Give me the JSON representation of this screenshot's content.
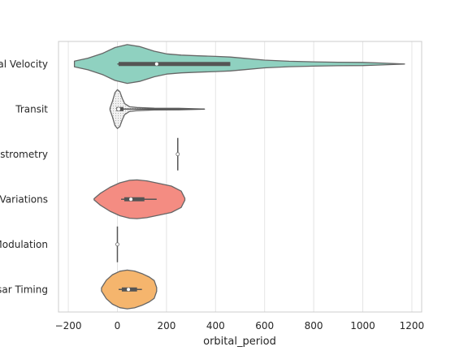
{
  "chart_data": {
    "type": "violin",
    "orientation": "horizontal",
    "xlabel": "orbital_period",
    "ylabel": "",
    "xlim": [
      -240,
      1240
    ],
    "xticks": [
      -200,
      0,
      200,
      400,
      600,
      800,
      1000,
      1200
    ],
    "xtick_labels": [
      "−200",
      "0",
      "200",
      "400",
      "600",
      "800",
      "1000",
      "1200"
    ],
    "grid": true,
    "categories": [
      "al Velocity",
      "Transit",
      "Astrometry",
      "Variations",
      "Modulation",
      "sar Timing"
    ],
    "violins": [
      {
        "category": "al Velocity",
        "color": "#8fd1c0",
        "fill": "solid",
        "min": -175,
        "max": 1170,
        "box": [
          5,
          460
        ],
        "median": 160,
        "whisker": [
          0,
          460
        ],
        "density": [
          [
            -175,
            0.15
          ],
          [
            -120,
            0.3
          ],
          [
            -60,
            0.55
          ],
          [
            -10,
            0.85
          ],
          [
            40,
            1.0
          ],
          [
            90,
            0.9
          ],
          [
            150,
            0.66
          ],
          [
            200,
            0.52
          ],
          [
            260,
            0.46
          ],
          [
            330,
            0.42
          ],
          [
            400,
            0.39
          ],
          [
            460,
            0.36
          ],
          [
            520,
            0.29
          ],
          [
            600,
            0.2
          ],
          [
            700,
            0.14
          ],
          [
            800,
            0.11
          ],
          [
            900,
            0.09
          ],
          [
            1000,
            0.08
          ],
          [
            1080,
            0.05
          ],
          [
            1170,
            0.0
          ]
        ]
      },
      {
        "category": "Transit",
        "color": "#f2f2f2",
        "fill": "hatch",
        "min": -30,
        "max": 355,
        "box": [
          -4,
          25
        ],
        "median": 5,
        "whisker": [
          0,
          355
        ],
        "density": [
          [
            -30,
            0.05
          ],
          [
            -20,
            0.4
          ],
          [
            -10,
            0.85
          ],
          [
            0,
            1.0
          ],
          [
            10,
            0.9
          ],
          [
            20,
            0.55
          ],
          [
            30,
            0.28
          ],
          [
            50,
            0.12
          ],
          [
            80,
            0.08
          ],
          [
            150,
            0.05
          ],
          [
            250,
            0.04
          ],
          [
            355,
            0.0
          ]
        ]
      },
      {
        "category": "Astrometry",
        "color": "#bebada",
        "fill": "solid",
        "min": 246,
        "max": 246,
        "box": null,
        "median": 246,
        "whisker": null,
        "density": []
      },
      {
        "category": "Variations",
        "color": "#f48c82",
        "fill": "solid",
        "min": -95,
        "max": 275,
        "box": [
          28,
          110
        ],
        "median": 55,
        "whisker": [
          15,
          160
        ],
        "density": [
          [
            -95,
            0.03
          ],
          [
            -70,
            0.3
          ],
          [
            -30,
            0.62
          ],
          [
            10,
            0.85
          ],
          [
            50,
            0.98
          ],
          [
            80,
            1.0
          ],
          [
            120,
            0.95
          ],
          [
            170,
            0.82
          ],
          [
            220,
            0.68
          ],
          [
            260,
            0.42
          ],
          [
            275,
            0.05
          ]
        ]
      },
      {
        "category": "Modulation",
        "color": "#80b1d3",
        "fill": "solid",
        "min": -1,
        "max": 1,
        "box": [
          -1,
          1
        ],
        "median": 0,
        "whisker": [
          -1,
          1
        ],
        "density": []
      },
      {
        "category": "sar Timing",
        "color": "#f5b56d",
        "fill": "solid",
        "min": -65,
        "max": 160,
        "box": [
          18,
          80
        ],
        "median": 45,
        "whisker": [
          5,
          100
        ],
        "density": [
          [
            -65,
            0.08
          ],
          [
            -45,
            0.48
          ],
          [
            -20,
            0.76
          ],
          [
            10,
            0.94
          ],
          [
            40,
            1.0
          ],
          [
            70,
            0.95
          ],
          [
            100,
            0.82
          ],
          [
            130,
            0.64
          ],
          [
            150,
            0.46
          ],
          [
            160,
            0.1
          ]
        ]
      }
    ]
  }
}
